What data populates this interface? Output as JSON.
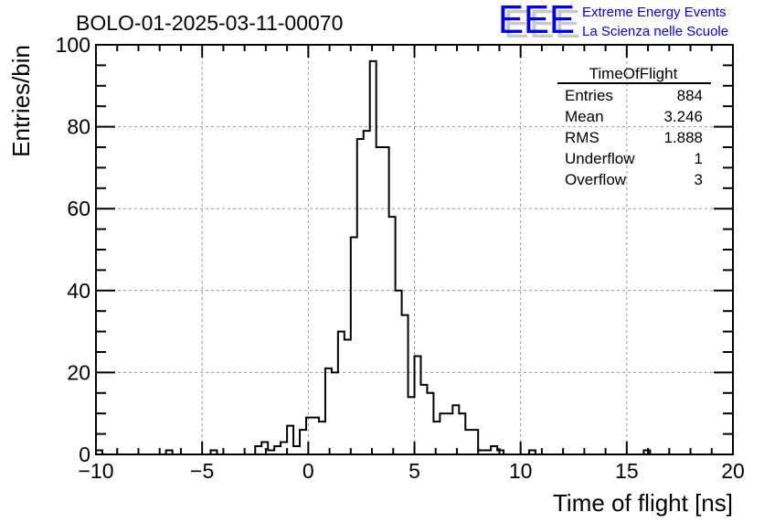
{
  "logo": {
    "letters": "EEE",
    "line1": "Extreme Energy Events",
    "line2": "La Scienza nelle Scuole",
    "color": "#0000ff"
  },
  "stats": {
    "title": "TimeOfFlight",
    "rows": [
      {
        "label": "Entries",
        "value": "884"
      },
      {
        "label": "Mean",
        "value": "3.246"
      },
      {
        "label": "RMS",
        "value": "1.888"
      },
      {
        "label": "Underflow",
        "value": "1"
      },
      {
        "label": "Overflow",
        "value": "3"
      }
    ]
  },
  "chart_data": {
    "type": "bar",
    "title": "BOLO-01-2025-03-11-00070",
    "xlabel": "Time of flight [ns]",
    "ylabel": "Entries/bin",
    "xlim": [
      -10,
      20
    ],
    "ylim": [
      0,
      100
    ],
    "bin_width": 0.3,
    "grid": true,
    "xticks": [
      "−10",
      "−5",
      "0",
      "5",
      "10",
      "15",
      "20"
    ],
    "xtick_values": [
      -10,
      -5,
      0,
      5,
      10,
      15,
      20
    ],
    "yticks": [
      "0",
      "20",
      "40",
      "60",
      "80",
      "100"
    ],
    "ytick_values": [
      0,
      20,
      40,
      60,
      80,
      100
    ],
    "bins": [
      {
        "bin_start": -10.0,
        "count": 1
      },
      {
        "bin_start": -6.7,
        "count": 1
      },
      {
        "bin_start": -4.6,
        "count": 1
      },
      {
        "bin_start": -2.5,
        "count": 2
      },
      {
        "bin_start": -2.2,
        "count": 3
      },
      {
        "bin_start": -1.9,
        "count": 1
      },
      {
        "bin_start": -1.6,
        "count": 2
      },
      {
        "bin_start": -1.3,
        "count": 3
      },
      {
        "bin_start": -1.0,
        "count": 7
      },
      {
        "bin_start": -0.7,
        "count": 2
      },
      {
        "bin_start": -0.4,
        "count": 6
      },
      {
        "bin_start": -0.1,
        "count": 9
      },
      {
        "bin_start": 0.2,
        "count": 9
      },
      {
        "bin_start": 0.5,
        "count": 8
      },
      {
        "bin_start": 0.8,
        "count": 21
      },
      {
        "bin_start": 1.1,
        "count": 20
      },
      {
        "bin_start": 1.4,
        "count": 30
      },
      {
        "bin_start": 1.7,
        "count": 28
      },
      {
        "bin_start": 2.0,
        "count": 53
      },
      {
        "bin_start": 2.3,
        "count": 77
      },
      {
        "bin_start": 2.6,
        "count": 79
      },
      {
        "bin_start": 2.9,
        "count": 96
      },
      {
        "bin_start": 3.2,
        "count": 75
      },
      {
        "bin_start": 3.5,
        "count": 75
      },
      {
        "bin_start": 3.8,
        "count": 58
      },
      {
        "bin_start": 4.1,
        "count": 40
      },
      {
        "bin_start": 4.4,
        "count": 34
      },
      {
        "bin_start": 4.7,
        "count": 14
      },
      {
        "bin_start": 5.0,
        "count": 24
      },
      {
        "bin_start": 5.3,
        "count": 17
      },
      {
        "bin_start": 5.6,
        "count": 15
      },
      {
        "bin_start": 5.9,
        "count": 8
      },
      {
        "bin_start": 6.2,
        "count": 10
      },
      {
        "bin_start": 6.5,
        "count": 10
      },
      {
        "bin_start": 6.8,
        "count": 12
      },
      {
        "bin_start": 7.1,
        "count": 10
      },
      {
        "bin_start": 7.4,
        "count": 6
      },
      {
        "bin_start": 7.7,
        "count": 6
      },
      {
        "bin_start": 8.0,
        "count": 1
      },
      {
        "bin_start": 8.3,
        "count": 1
      },
      {
        "bin_start": 8.6,
        "count": 2
      },
      {
        "bin_start": 8.9,
        "count": 1
      },
      {
        "bin_start": 10.4,
        "count": 1
      },
      {
        "bin_start": 15.8,
        "count": 1
      }
    ]
  }
}
